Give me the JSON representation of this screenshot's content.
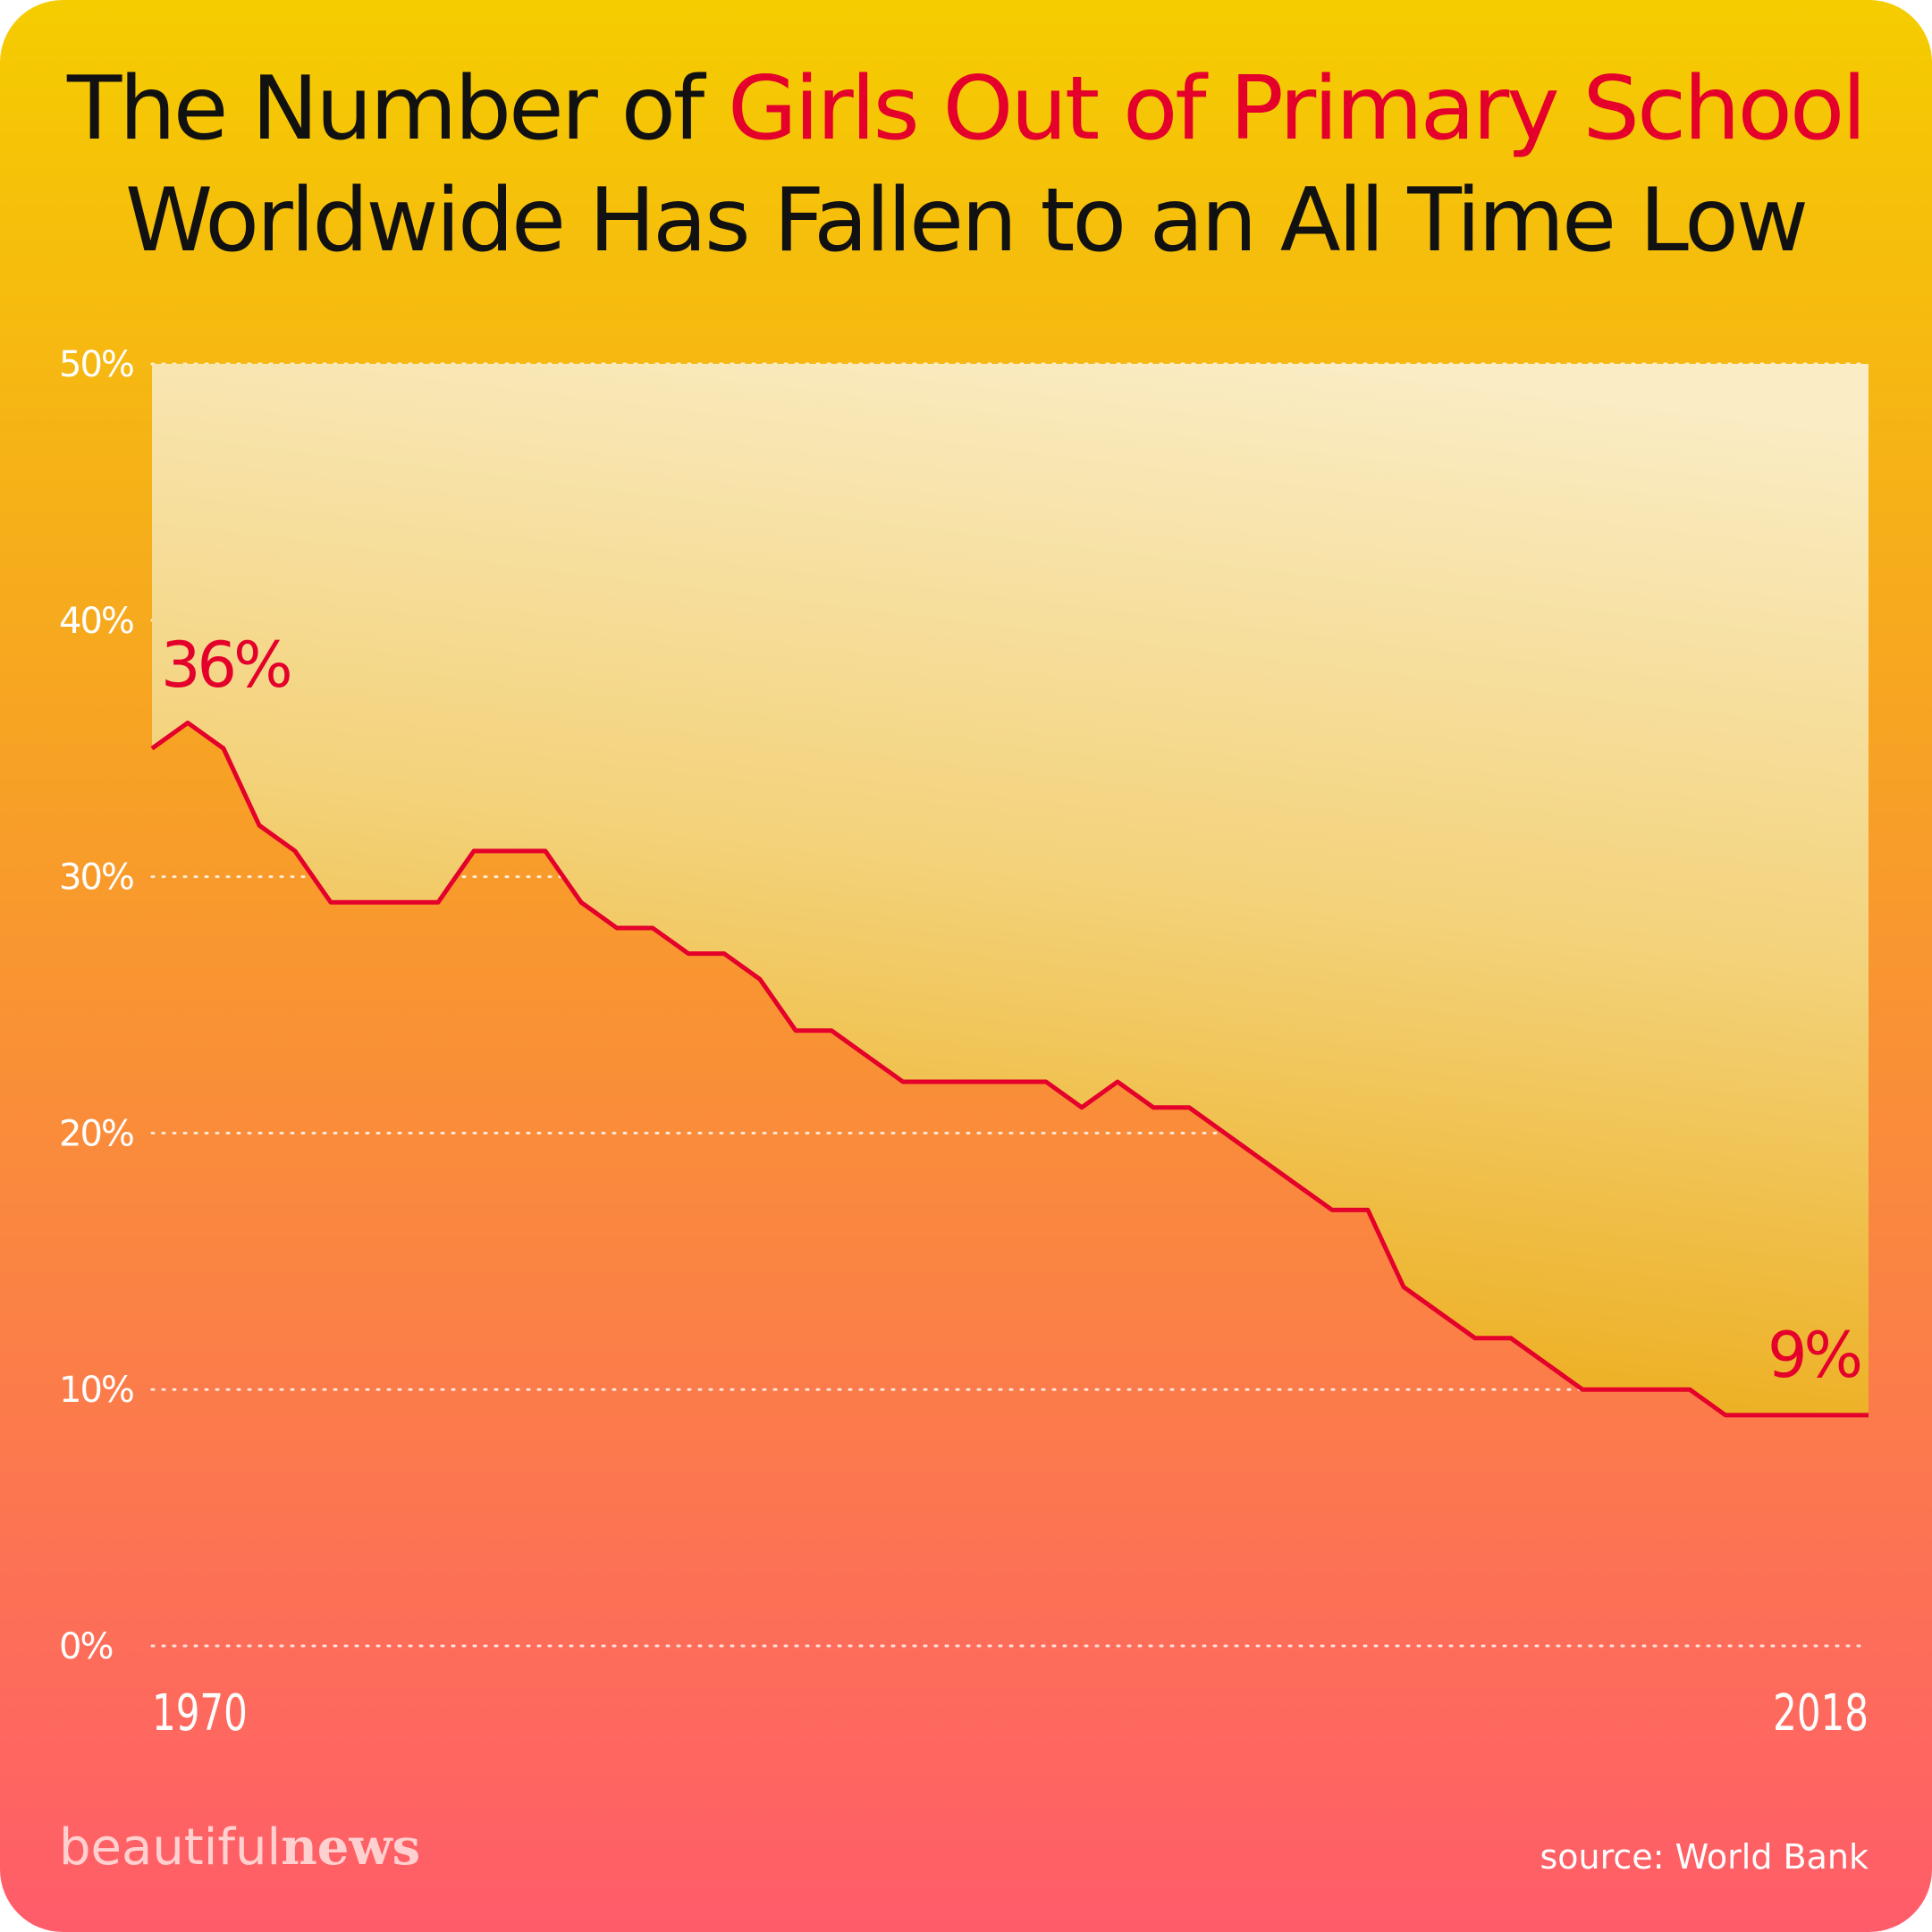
{
  "chart_data": {
    "type": "line",
    "title": [
      "The Number of",
      "Girls Out of Primary School",
      "Worldwide Has Fallen to an All Time Low"
    ],
    "x": [
      1970,
      1971,
      1972,
      1973,
      1974,
      1975,
      1976,
      1977,
      1978,
      1979,
      1980,
      1981,
      1982,
      1983,
      1984,
      1985,
      1986,
      1987,
      1988,
      1989,
      1990,
      1991,
      1992,
      1993,
      1994,
      1995,
      1996,
      1997,
      1998,
      1999,
      2000,
      2001,
      2002,
      2003,
      2004,
      2005,
      2006,
      2007,
      2008,
      2009,
      2010,
      2011,
      2012,
      2013,
      2014,
      2015,
      2016,
      2017,
      2018
    ],
    "series": [
      {
        "color": "#e4002b",
        "values": [
          35,
          36,
          35,
          32,
          31,
          29,
          29,
          29,
          29,
          31,
          31,
          31,
          29,
          28,
          28,
          27,
          27,
          26,
          24,
          24,
          23,
          22,
          22,
          22,
          22,
          22,
          21,
          22,
          21,
          21,
          20,
          19,
          18,
          17,
          17,
          14,
          13,
          12,
          12,
          11,
          10,
          10,
          10,
          10,
          9,
          9,
          9,
          9,
          9
        ]
      }
    ],
    "xlim": [
      1970,
      2018
    ],
    "xticks": [
      1970,
      2018
    ],
    "ylim": [
      0,
      50
    ],
    "yticks": [
      {
        "value": 0,
        "label": "0%"
      },
      {
        "value": 10,
        "label": "10%"
      },
      {
        "value": 20,
        "label": "20%"
      },
      {
        "value": 30,
        "label": "30%"
      },
      {
        "value": 40,
        "label": "40%"
      },
      {
        "value": 50,
        "label": "50%"
      }
    ],
    "grid": true,
    "annotations": [
      "36%",
      "9%"
    ],
    "brand": [
      "beautiful",
      "news"
    ],
    "source": "source: World Bank"
  }
}
